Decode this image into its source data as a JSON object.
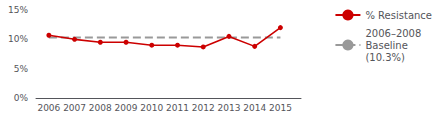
{
  "chart_data": {
    "type": "line",
    "x": [
      2006,
      2007,
      2008,
      2009,
      2010,
      2011,
      2012,
      2013,
      2014,
      2015
    ],
    "series": [
      {
        "name": "% Resistance",
        "color": "#cc0000",
        "marker": "circle",
        "line_style": "solid",
        "values": [
          10.7,
          10.0,
          9.5,
          9.5,
          9.0,
          9.0,
          8.7,
          10.5,
          8.8,
          12.0
        ]
      },
      {
        "name": "2006–2008\nBaseline\n(10.3%)",
        "color": "#999999",
        "line_style": "dashed",
        "x": [
          2006,
          2015
        ],
        "values": [
          10.3,
          10.3
        ]
      }
    ],
    "xlim": [
      2005.5,
      2015.8
    ],
    "xticks": [
      2006,
      2007,
      2008,
      2009,
      2010,
      2011,
      2012,
      2013,
      2014,
      2015
    ],
    "ylim": [
      0,
      15
    ],
    "yticks": [
      {
        "value": 0,
        "label": "0%"
      },
      {
        "value": 5,
        "label": "5%"
      },
      {
        "value": 10,
        "label": "10%"
      },
      {
        "value": 15,
        "label": "15%"
      }
    ],
    "grid": false,
    "legend": "right"
  }
}
